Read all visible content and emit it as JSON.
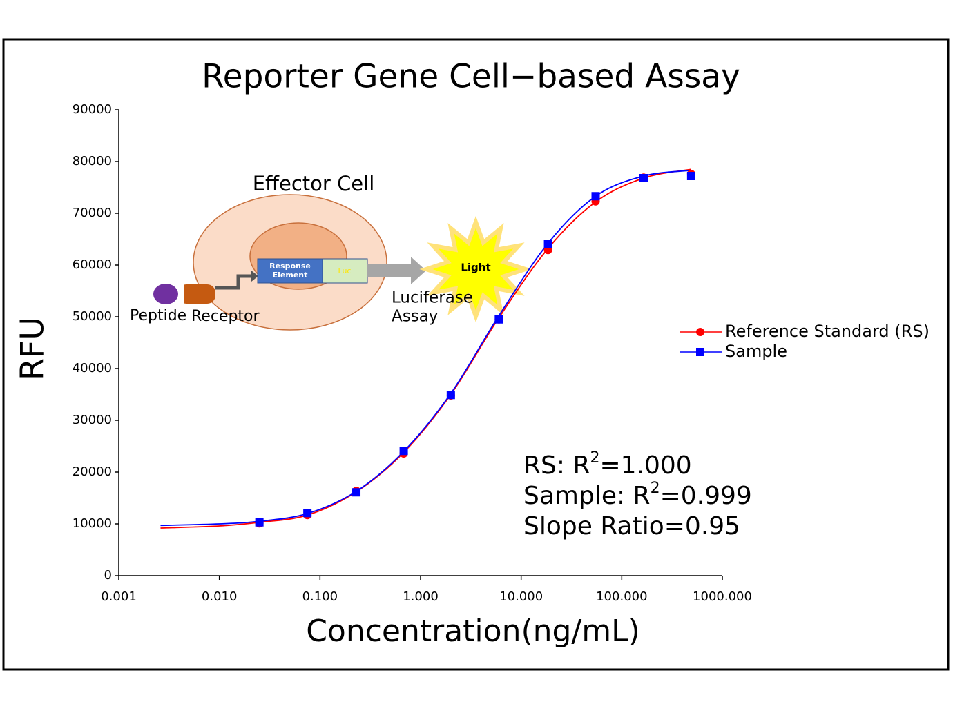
{
  "chart_data": {
    "type": "scatter",
    "title": "Reporter Gene Cell−based Assay",
    "x_label": "Concentration(ng/mL)",
    "y_label": "RFU",
    "xscale": "log",
    "xlim": [
      0.001,
      1000
    ],
    "xticks": [
      0.001,
      {
        "value": 0.01,
        "label": "0.010"
      },
      {
        "value": 0.1,
        "label": "0.100"
      },
      {
        "value": 1,
        "label": "1.000"
      },
      {
        "value": 10,
        "label": "10.000"
      },
      {
        "value": 100,
        "label": "100.000"
      },
      {
        "value": 1000,
        "label": "1000.000"
      }
    ],
    "ylim": [
      0,
      90000
    ],
    "yticks": [
      0,
      10000,
      20000,
      30000,
      40000,
      50000,
      60000,
      70000,
      80000,
      90000
    ],
    "legend": "right",
    "series": [
      {
        "name": "Reference Standard (RS)",
        "color": "#ff0000",
        "marker": "circle",
        "x": [
          0.025,
          0.075,
          0.23,
          0.68,
          2.0,
          6.0,
          18.5,
          55,
          165,
          490
        ],
        "values": [
          10100,
          11700,
          16400,
          23600,
          34800,
          49500,
          62900,
          72300,
          76900,
          77600
        ],
        "curve": {
          "x": [
            0.0026,
            0.01,
            0.025,
            0.075,
            0.23,
            0.68,
            2.0,
            6.0,
            18.5,
            55,
            165,
            490
          ],
          "values": [
            9200,
            9600,
            10300,
            11700,
            16200,
            23800,
            35000,
            49800,
            63200,
            72200,
            76800,
            78500
          ]
        }
      },
      {
        "name": "Sample",
        "color": "#0000ff",
        "marker": "square",
        "x": [
          0.025,
          0.075,
          0.23,
          0.68,
          2.0,
          6.0,
          18.5,
          55,
          165,
          490
        ],
        "values": [
          10300,
          12100,
          16100,
          24100,
          34900,
          49500,
          64000,
          73300,
          76800,
          77200
        ],
        "curve": {
          "x": [
            0.0026,
            0.01,
            0.025,
            0.075,
            0.23,
            0.68,
            2.0,
            6.0,
            18.5,
            55,
            165,
            490
          ],
          "values": [
            9700,
            10000,
            10500,
            12000,
            16300,
            24000,
            35200,
            50200,
            64200,
            73300,
            77200,
            78300
          ]
        }
      }
    ],
    "annotations": [
      {
        "text": "RS: R",
        "sup": "2",
        "rest": "=1.000"
      },
      {
        "text": "Sample: R",
        "sup": "2",
        "rest": "=0.999"
      },
      {
        "text": "Slope Ratio=0.95"
      }
    ],
    "inset": {
      "cell": "Effector Cell",
      "element": [
        "Response",
        "Element"
      ],
      "luc": "Luc",
      "light": "Light",
      "assay": [
        "Luciferase",
        "Assay"
      ],
      "peptide": "Peptide",
      "receptor": "Receptor"
    }
  }
}
